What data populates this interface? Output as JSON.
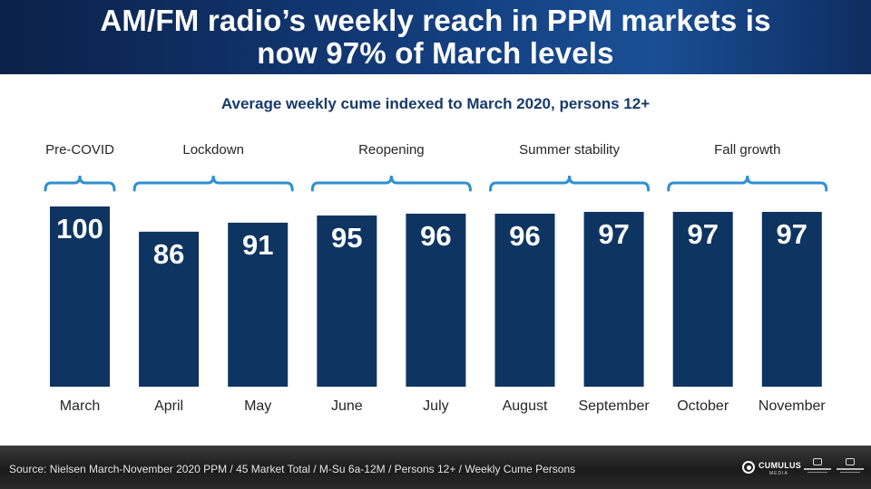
{
  "header": {
    "title_line1": "AM/FM radio’s weekly reach in PPM markets is",
    "title_line2": "now 97% of March levels"
  },
  "chart_data": {
    "type": "bar",
    "title": "Average weekly cume indexed to March 2020, persons 12+",
    "categories": [
      "March",
      "April",
      "May",
      "June",
      "July",
      "August",
      "September",
      "October",
      "November"
    ],
    "values": [
      100,
      86,
      91,
      95,
      96,
      96,
      97,
      97,
      97
    ],
    "ylim": [
      0,
      100
    ],
    "bar_color": "#0e3461",
    "label_color": "#ffffff",
    "groups": [
      {
        "label": "Pre-COVID",
        "start": 0,
        "end": 0
      },
      {
        "label": "Lockdown",
        "start": 1,
        "end": 2
      },
      {
        "label": "Reopening",
        "start": 3,
        "end": 4
      },
      {
        "label": "Summer stability",
        "start": 5,
        "end": 6
      },
      {
        "label": "Fall growth",
        "start": 7,
        "end": 8
      }
    ],
    "bracket_color": "#2f8fd3"
  },
  "footer": {
    "source": "Source: Nielsen March-November 2020 PPM / 45 Market Total / M-Su  6a-12M  / Persons 12+ / Weekly Cume Persons",
    "logo_main": "CUMULUS",
    "logo_main_sub": "MEDIA",
    "logo_icons": [
      "cumulus-radio-logo",
      "westwood-one-logo"
    ]
  }
}
